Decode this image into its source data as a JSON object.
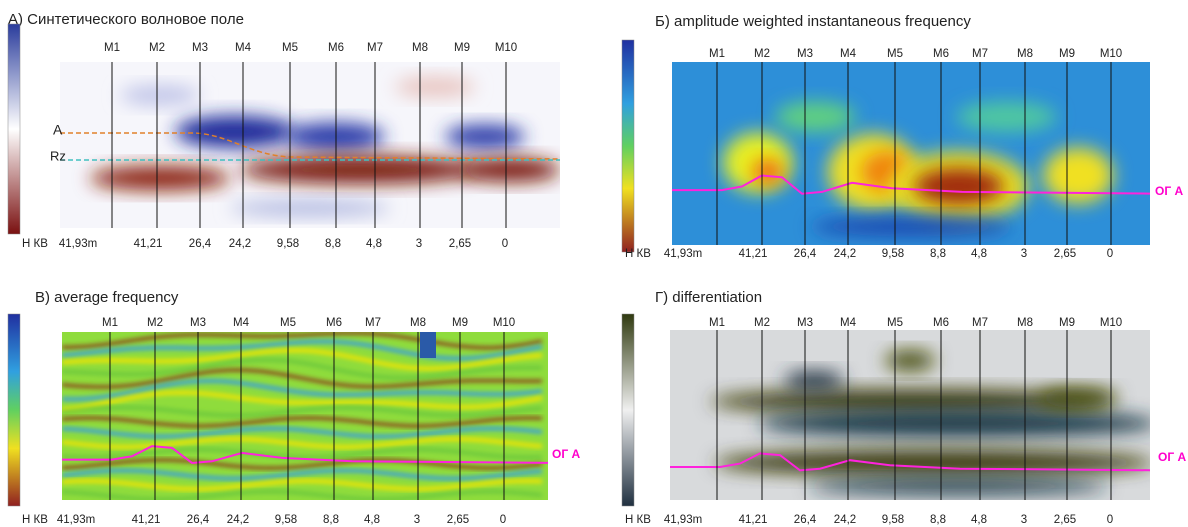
{
  "panels": [
    {
      "title": "А) Синтетического волновое поле",
      "wells": [
        "M1",
        "M2",
        "M3",
        "M4",
        "M5",
        "M6",
        "M7",
        "M8",
        "M9",
        "M10"
      ],
      "row_label": "Н КВ",
      "row_values": [
        "41,93m",
        "41,21",
        "26,4",
        "24,2",
        "9,58",
        "8,8",
        "4,8",
        "3",
        "2,65",
        "0"
      ],
      "markers": [
        "A",
        "Rz"
      ]
    },
    {
      "title": "Б) amplitude weighted instantaneous frequency",
      "wells": [
        "M1",
        "M2",
        "M3",
        "M4",
        "M5",
        "M6",
        "M7",
        "M8",
        "M9",
        "M10"
      ],
      "row_label": "Н КВ",
      "row_values": [
        "41,93m",
        "41,21",
        "26,4",
        "24,2",
        "9,58",
        "8,8",
        "4,8",
        "3",
        "2,65",
        "0"
      ],
      "horizon": "ОГ А"
    },
    {
      "title": "В) average frequency",
      "wells": [
        "M1",
        "M2",
        "M3",
        "M4",
        "M5",
        "M6",
        "M7",
        "M8",
        "M9",
        "M10"
      ],
      "row_label": "Н КВ",
      "row_values": [
        "41,93m",
        "41,21",
        "26,4",
        "24,2",
        "9,58",
        "8,8",
        "4,8",
        "3",
        "2,65",
        "0"
      ],
      "horizon": "ОГ А"
    },
    {
      "title": "Г) differentiation",
      "wells": [
        "M1",
        "M2",
        "M3",
        "M4",
        "M5",
        "M6",
        "M7",
        "M8",
        "M9",
        "M10"
      ],
      "row_label": "Н КВ",
      "row_values": [
        "41,93m",
        "41,21",
        "26,4",
        "24,2",
        "9,58",
        "8,8",
        "4,8",
        "3",
        "2,65",
        "0"
      ],
      "horizon": "ОГ А"
    }
  ]
}
